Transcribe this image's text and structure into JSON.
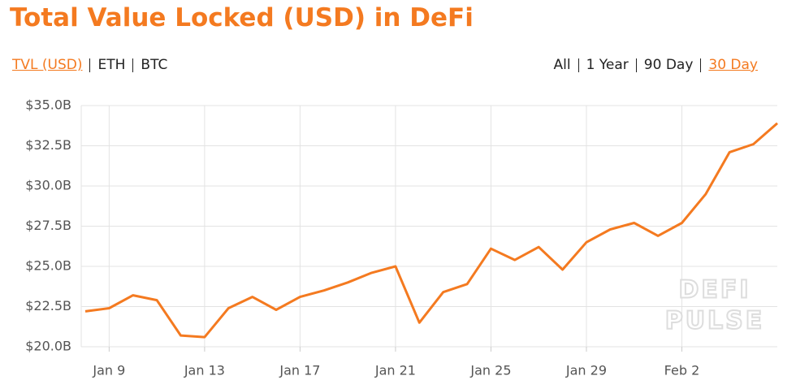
{
  "chart_data": {
    "type": "line",
    "title": "Total Value Locked (USD) in DeFi",
    "categories": [
      null,
      "Jan 9",
      null,
      null,
      null,
      "Jan 13",
      null,
      null,
      null,
      "Jan 17",
      null,
      null,
      null,
      "Jan 21",
      null,
      null,
      null,
      "Jan 25",
      null,
      null,
      null,
      "Jan 29",
      null,
      null,
      null,
      "Feb 2",
      null,
      null,
      null,
      null
    ],
    "values": [
      22.2,
      22.4,
      23.2,
      22.9,
      20.7,
      20.6,
      22.4,
      23.1,
      22.3,
      23.1,
      23.5,
      24.0,
      24.6,
      25.0,
      21.5,
      23.4,
      23.9,
      26.1,
      25.4,
      26.2,
      24.8,
      26.5,
      27.3,
      27.7,
      26.9,
      27.7,
      29.5,
      32.1,
      32.6,
      33.9
    ],
    "color": "#f47a20",
    "ylim": [
      20,
      35
    ],
    "yticks": [
      {
        "value": 20,
        "label": "$20.0B"
      },
      {
        "value": 22.5,
        "label": "$22.5B"
      },
      {
        "value": 25,
        "label": "$25.0B"
      },
      {
        "value": 27.5,
        "label": "$27.5B"
      },
      {
        "value": 30,
        "label": "$30.0B"
      },
      {
        "value": 32.5,
        "label": "$32.5B"
      },
      {
        "value": 35,
        "label": "$35.0B"
      }
    ],
    "grid": true
  },
  "controls": {
    "metrics": [
      "TVL (USD)",
      "ETH",
      "BTC"
    ],
    "active_metric": 0,
    "ranges": [
      "All",
      "1 Year",
      "90 Day",
      "30 Day"
    ],
    "active_range": 3
  },
  "watermark": [
    "DEFI",
    "PULSE"
  ]
}
